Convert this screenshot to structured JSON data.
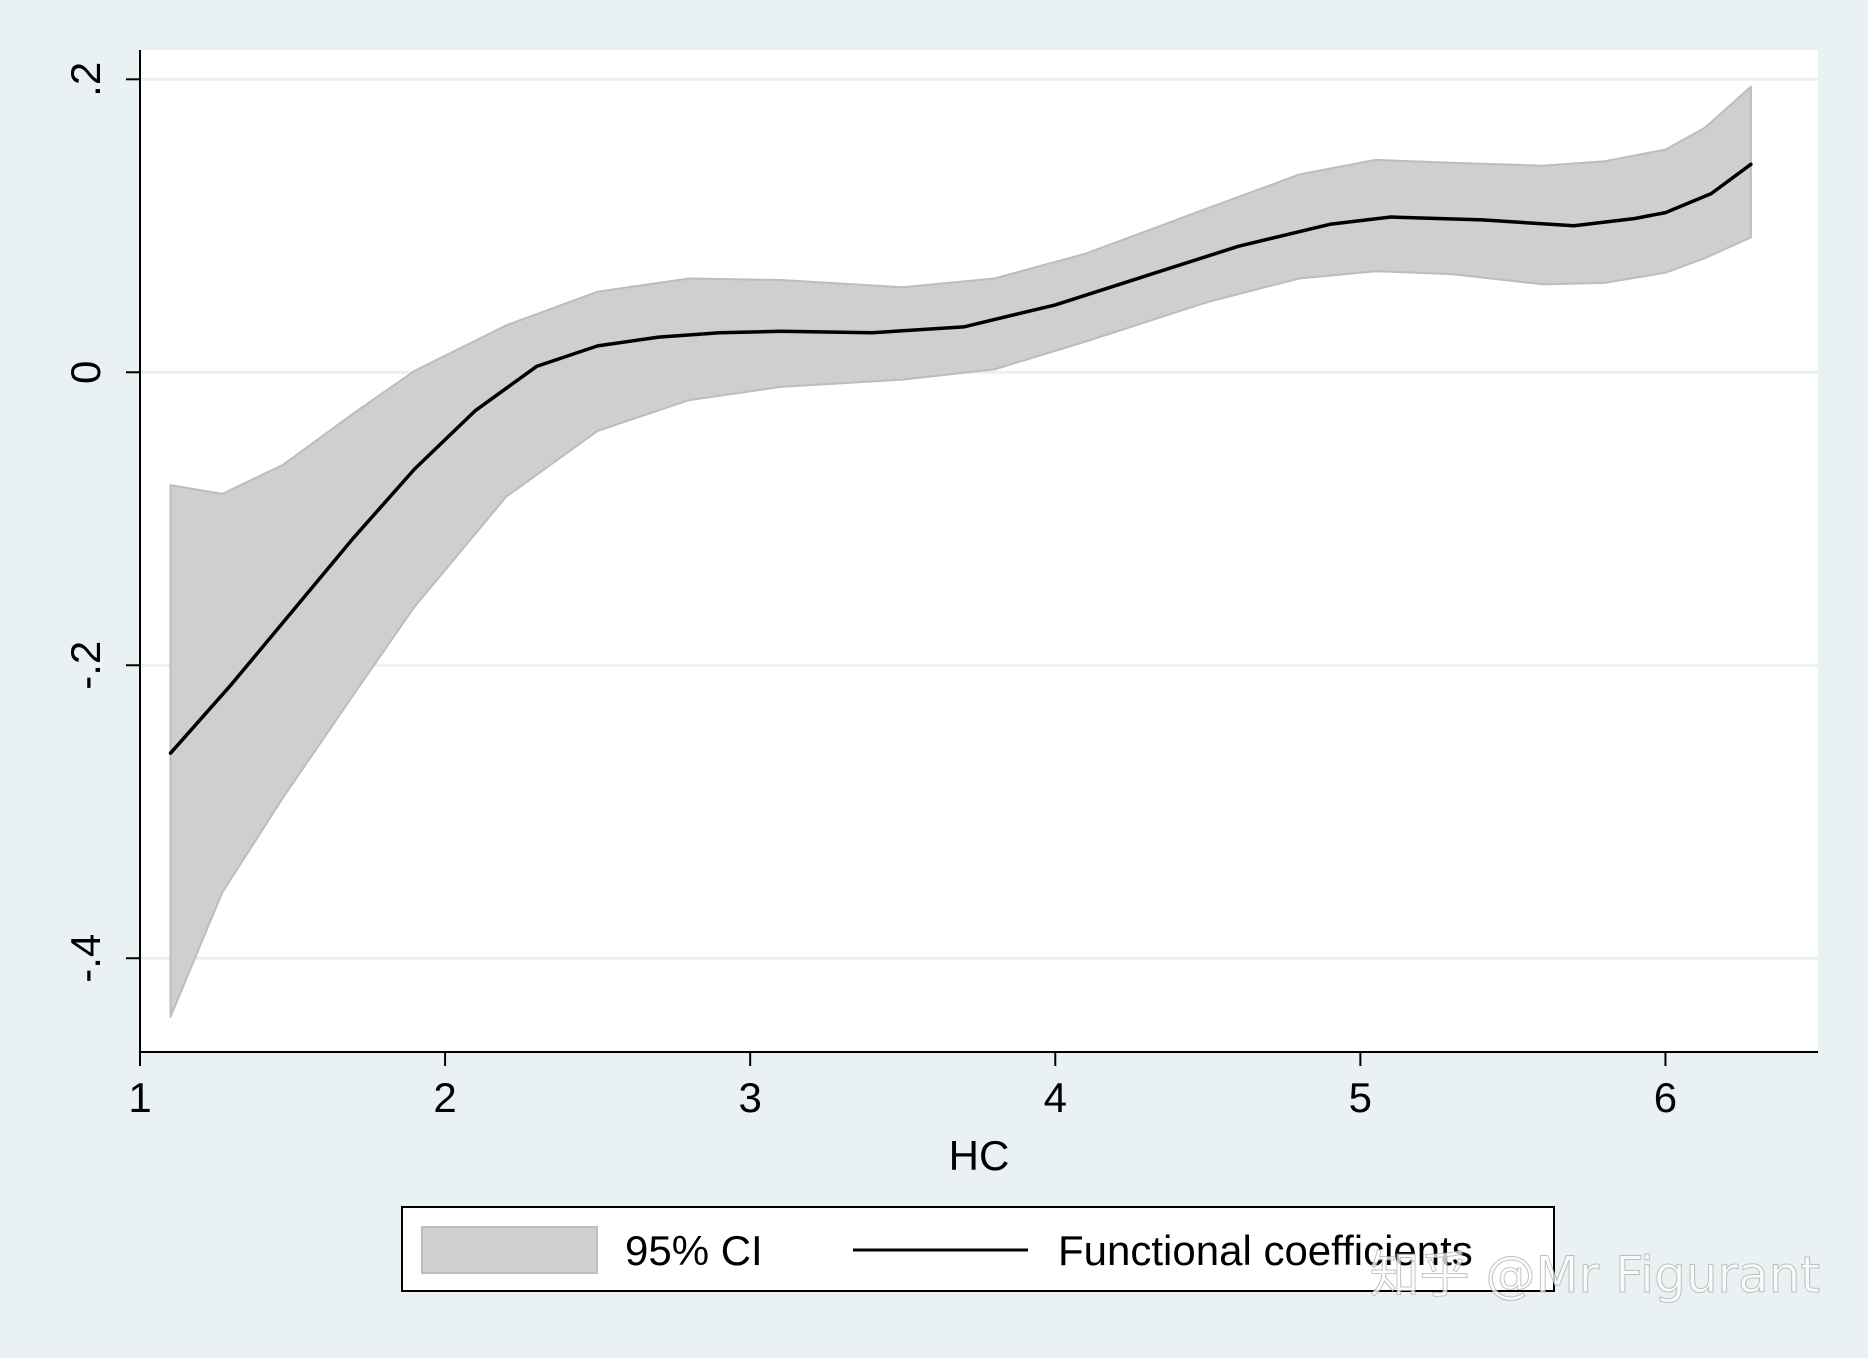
{
  "chart_data": {
    "type": "line",
    "title": "",
    "xlabel": "HC",
    "ylabel": "",
    "xlim": [
      1,
      6.5
    ],
    "ylim": [
      -0.464,
      0.22
    ],
    "xticks": [
      1,
      2,
      3,
      4,
      5,
      6
    ],
    "xtick_labels": [
      "1",
      "2",
      "3",
      "4",
      "5",
      "6"
    ],
    "yticks": [
      -0.4,
      -0.2,
      0,
      0.2
    ],
    "ytick_labels": [
      "-.4",
      "-.2",
      "0",
      ".2"
    ],
    "grid": true,
    "legend_position": "bottom",
    "series": [
      {
        "name": "95% CI",
        "kind": "band",
        "color": "#cfcfcf",
        "x": [
          1.1,
          1.27,
          1.47,
          1.7,
          1.9,
          2.2,
          2.5,
          2.8,
          3.1,
          3.5,
          3.8,
          4.1,
          4.5,
          4.8,
          5.05,
          5.3,
          5.6,
          5.8,
          6.0,
          6.13,
          6.28
        ],
        "upper": [
          -0.077,
          -0.083,
          -0.063,
          -0.028,
          0.001,
          0.032,
          0.055,
          0.064,
          0.063,
          0.058,
          0.064,
          0.081,
          0.112,
          0.135,
          0.145,
          0.143,
          0.141,
          0.144,
          0.152,
          0.167,
          0.195
        ],
        "lower": [
          -0.44,
          -0.355,
          -0.29,
          -0.22,
          -0.16,
          -0.085,
          -0.04,
          -0.019,
          -0.01,
          -0.005,
          0.002,
          0.021,
          0.048,
          0.064,
          0.069,
          0.067,
          0.06,
          0.061,
          0.068,
          0.078,
          0.092
        ]
      },
      {
        "name": "Functional coefficients",
        "kind": "line",
        "color": "#000000",
        "x": [
          1.1,
          1.3,
          1.5,
          1.7,
          1.9,
          2.1,
          2.3,
          2.5,
          2.7,
          2.9,
          3.1,
          3.4,
          3.7,
          4.0,
          4.3,
          4.6,
          4.9,
          5.1,
          5.4,
          5.7,
          5.9,
          6.0,
          6.15,
          6.28
        ],
        "values": [
          -0.26,
          -0.213,
          -0.163,
          -0.113,
          -0.066,
          -0.026,
          0.004,
          0.018,
          0.024,
          0.027,
          0.028,
          0.027,
          0.031,
          0.046,
          0.066,
          0.086,
          0.101,
          0.106,
          0.104,
          0.1,
          0.105,
          0.109,
          0.122,
          0.142
        ]
      }
    ]
  },
  "colors": {
    "background": "#eaf1f3",
    "plot_background": "#ffffff",
    "grid": "#eaf1f3",
    "ci_fill": "#cfcfcf",
    "ci_edge": "#bdbdbd",
    "line": "#000000"
  },
  "watermark": "知乎 @Mr Figurant"
}
